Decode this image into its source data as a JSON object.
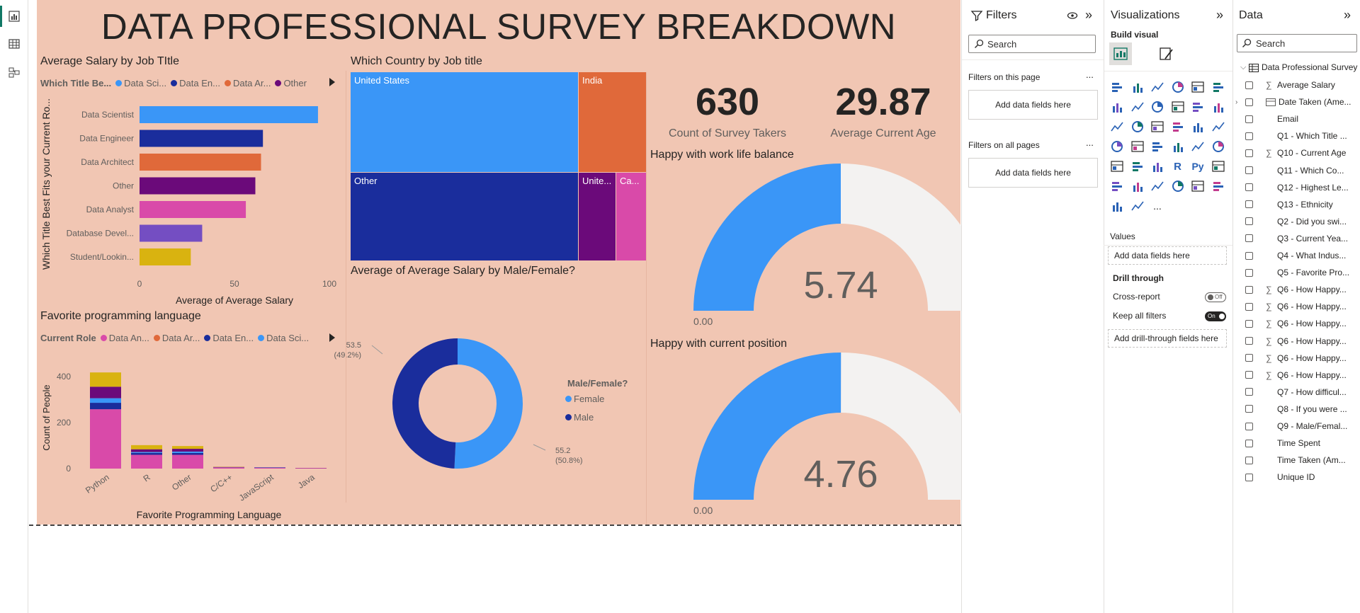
{
  "report": {
    "title": "DATA PROFESSIONAL SURVEY BREAKDOWN",
    "bg_color": "#f1c6b3"
  },
  "salary_by_title": {
    "title": "Average Salary by Job TItle",
    "legend_label": "Which Title Be...",
    "legend": [
      {
        "name": "Data Sci...",
        "color": "#3a96f7"
      },
      {
        "name": "Data En...",
        "color": "#1a2d9c"
      },
      {
        "name": "Data Ar...",
        "color": "#e0693a"
      },
      {
        "name": "Other",
        "color": "#6b0a7a"
      }
    ],
    "ylabel": "Which Title Best Fits your Current Ro...",
    "xlabel": "Average of Average Salary",
    "ticks": [
      "0",
      "50",
      "100"
    ]
  },
  "country_treemap": {
    "title": "Which Country by Job title",
    "cells": [
      {
        "label": "United States",
        "color": "#3a96f7"
      },
      {
        "label": "India",
        "color": "#e0693a"
      },
      {
        "label": "Other",
        "color": "#1a2d9c"
      },
      {
        "label": "Unite...",
        "color": "#6b0a7a"
      },
      {
        "label": "Ca...",
        "color": "#d94aa9"
      }
    ]
  },
  "kpis": {
    "count_value": "630",
    "count_label": "Count of Survey Takers",
    "age_value": "29.87",
    "age_label": "Average Current Age"
  },
  "gauge_worklife": {
    "title": "Happy with work life balance",
    "value": "5.74",
    "min": "0.00",
    "max": "11.48"
  },
  "gauge_position": {
    "title": "Happy with current position",
    "value": "4.76",
    "min": "0.00",
    "max": "9.51"
  },
  "prog_lang": {
    "title": "Favorite programming language",
    "legend_label": "Current Role",
    "legend": [
      {
        "name": "Data An...",
        "color": "#d94aa9"
      },
      {
        "name": "Data Ar...",
        "color": "#e0693a"
      },
      {
        "name": "Data En...",
        "color": "#1a2d9c"
      },
      {
        "name": "Data Sci...",
        "color": "#3a96f7"
      }
    ],
    "ylabel": "Count of People",
    "xlabel": "Favorite Programming Language",
    "yticks": [
      "400",
      "200",
      "0"
    ]
  },
  "donut": {
    "title": "Average of Average Salary by Male/Female?",
    "legend_title": "Male/Female?",
    "label_male": "53.5",
    "label_male_pct": "(49.2%)",
    "label_female": "55.2",
    "label_female_pct": "(50.8%)"
  },
  "chart_data": [
    {
      "type": "bar",
      "title": "Average Salary by Job TItle",
      "orientation": "horizontal",
      "categories": [
        "Data Scientist",
        "Data Engineer",
        "Data Architect",
        "Other",
        "Data Analyst",
        "Database Devel...",
        "Student/Lookin..."
      ],
      "values": [
        94,
        65,
        64,
        61,
        56,
        33,
        27
      ],
      "colors": [
        "#3a96f7",
        "#1a2d9c",
        "#e0693a",
        "#6b0a7a",
        "#d94aa9",
        "#744ec2",
        "#d9b310"
      ],
      "xlabel": "Average of Average Salary",
      "ylabel": "Which Title Best Fits your Current Ro...",
      "xlim": [
        0,
        100
      ]
    },
    {
      "type": "bar",
      "title": "Favorite programming language",
      "stacked": true,
      "categories": [
        "Python",
        "R",
        "Other",
        "C/C++",
        "JavaScript",
        "Java"
      ],
      "series": [
        {
          "name": "Data An...",
          "color": "#d94aa9",
          "values": [
            258,
            60,
            60,
            5,
            3,
            2
          ]
        },
        {
          "name": "",
          "color": "#1a2d9c",
          "values": [
            28,
            8,
            8,
            1,
            1,
            0
          ]
        },
        {
          "name": "",
          "color": "#3a96f7",
          "values": [
            20,
            4,
            6,
            0,
            1,
            0
          ]
        },
        {
          "name": "",
          "color": "#6b0a7a",
          "values": [
            50,
            12,
            12,
            1,
            1,
            1
          ]
        },
        {
          "name": "",
          "color": "#d9b310",
          "values": [
            62,
            18,
            12,
            1,
            0,
            0
          ]
        }
      ],
      "xlabel": "Favorite Programming Language",
      "ylabel": "Count of People",
      "ylim": [
        0,
        420
      ]
    },
    {
      "type": "pie",
      "title": "Average of Average Salary by Male/Female?",
      "categories": [
        "Female",
        "Male"
      ],
      "values": [
        55.2,
        53.5
      ],
      "colors": [
        "#3a96f7",
        "#1a2d9c"
      ]
    },
    {
      "type": "treemap",
      "title": "Which Country by Job title",
      "categories": [
        "United States",
        "India",
        "Other",
        "Unite...",
        "Ca..."
      ],
      "colors": [
        "#3a96f7",
        "#e0693a",
        "#1a2d9c",
        "#6b0a7a",
        "#d94aa9"
      ]
    }
  ],
  "filters": {
    "title": "Filters",
    "search_placeholder": "Search",
    "on_page_label": "Filters on this page",
    "on_all_label": "Filters on all pages",
    "add_fields": "Add data fields here",
    "ellipsis": "..."
  },
  "visualizations": {
    "title": "Visualizations",
    "build_visual": "Build visual",
    "values_label": "Values",
    "add_fields": "Add data fields here",
    "drill_through": "Drill through",
    "cross_report": "Cross-report",
    "cross_report_state": "Off",
    "keep_filters": "Keep all filters",
    "keep_filters_state": "On",
    "add_drill": "Add drill-through fields here",
    "r_icon": "R",
    "py_icon": "Py",
    "more": "..."
  },
  "data_pane": {
    "title": "Data",
    "search_placeholder": "Search",
    "table_name": "Data Professional Survey",
    "fields": [
      {
        "name": "Average Salary",
        "sigma": true
      },
      {
        "name": "Date Taken (Ame...",
        "table": true
      },
      {
        "name": "Email"
      },
      {
        "name": "Q1 - Which Title ..."
      },
      {
        "name": "Q10 - Current Age",
        "sigma": true
      },
      {
        "name": "Q11 - Which Co..."
      },
      {
        "name": "Q12 - Highest Le..."
      },
      {
        "name": "Q13 - Ethnicity"
      },
      {
        "name": "Q2 - Did you swi..."
      },
      {
        "name": "Q3 - Current Yea..."
      },
      {
        "name": "Q4 - What Indus..."
      },
      {
        "name": "Q5 - Favorite Pro..."
      },
      {
        "name": "Q6 - How Happy...",
        "sigma": true
      },
      {
        "name": "Q6 - How Happy...",
        "sigma": true
      },
      {
        "name": "Q6 - How Happy...",
        "sigma": true
      },
      {
        "name": "Q6 - How Happy...",
        "sigma": true
      },
      {
        "name": "Q6 - How Happy...",
        "sigma": true
      },
      {
        "name": "Q6 - How Happy...",
        "sigma": true
      },
      {
        "name": "Q7 - How difficul..."
      },
      {
        "name": "Q8 - If you were ..."
      },
      {
        "name": "Q9 - Male/Femal..."
      },
      {
        "name": "Time Spent"
      },
      {
        "name": "Time Taken (Am..."
      },
      {
        "name": "Unique ID"
      }
    ]
  }
}
